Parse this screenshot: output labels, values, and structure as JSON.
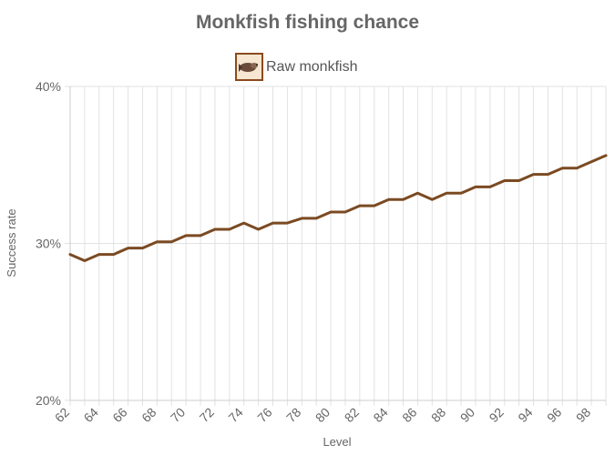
{
  "chart_data": {
    "type": "line",
    "title": "Monkfish fishing chance",
    "xlabel": "Level",
    "ylabel": "Success rate",
    "ylim": [
      20,
      40
    ],
    "y_ticks": [
      "20%",
      "30%",
      "40%"
    ],
    "x_tick_labels": [
      "62",
      "64",
      "66",
      "68",
      "70",
      "72",
      "74",
      "76",
      "78",
      "80",
      "82",
      "84",
      "86",
      "88",
      "90",
      "92",
      "94",
      "96",
      "98"
    ],
    "grid": true,
    "legend_position": "top-center",
    "series": [
      {
        "name": "Raw monkfish",
        "color": "#7b4a22",
        "icon": "raw-monkfish-icon",
        "x": [
          62,
          63,
          64,
          65,
          66,
          67,
          68,
          69,
          70,
          71,
          72,
          73,
          74,
          75,
          76,
          77,
          78,
          79,
          80,
          81,
          82,
          83,
          84,
          85,
          86,
          87,
          88,
          89,
          90,
          91,
          92,
          93,
          94,
          95,
          96,
          97,
          98,
          99
        ],
        "values": [
          29.3,
          28.9,
          29.3,
          29.3,
          29.7,
          29.7,
          30.1,
          30.1,
          30.5,
          30.5,
          30.9,
          30.9,
          31.3,
          30.9,
          31.3,
          31.3,
          31.6,
          31.6,
          32.0,
          32.0,
          32.4,
          32.4,
          32.8,
          32.8,
          33.2,
          32.8,
          33.2,
          33.2,
          33.6,
          33.6,
          34.0,
          34.0,
          34.4,
          34.4,
          34.8,
          34.8,
          35.2,
          35.6
        ]
      }
    ]
  }
}
